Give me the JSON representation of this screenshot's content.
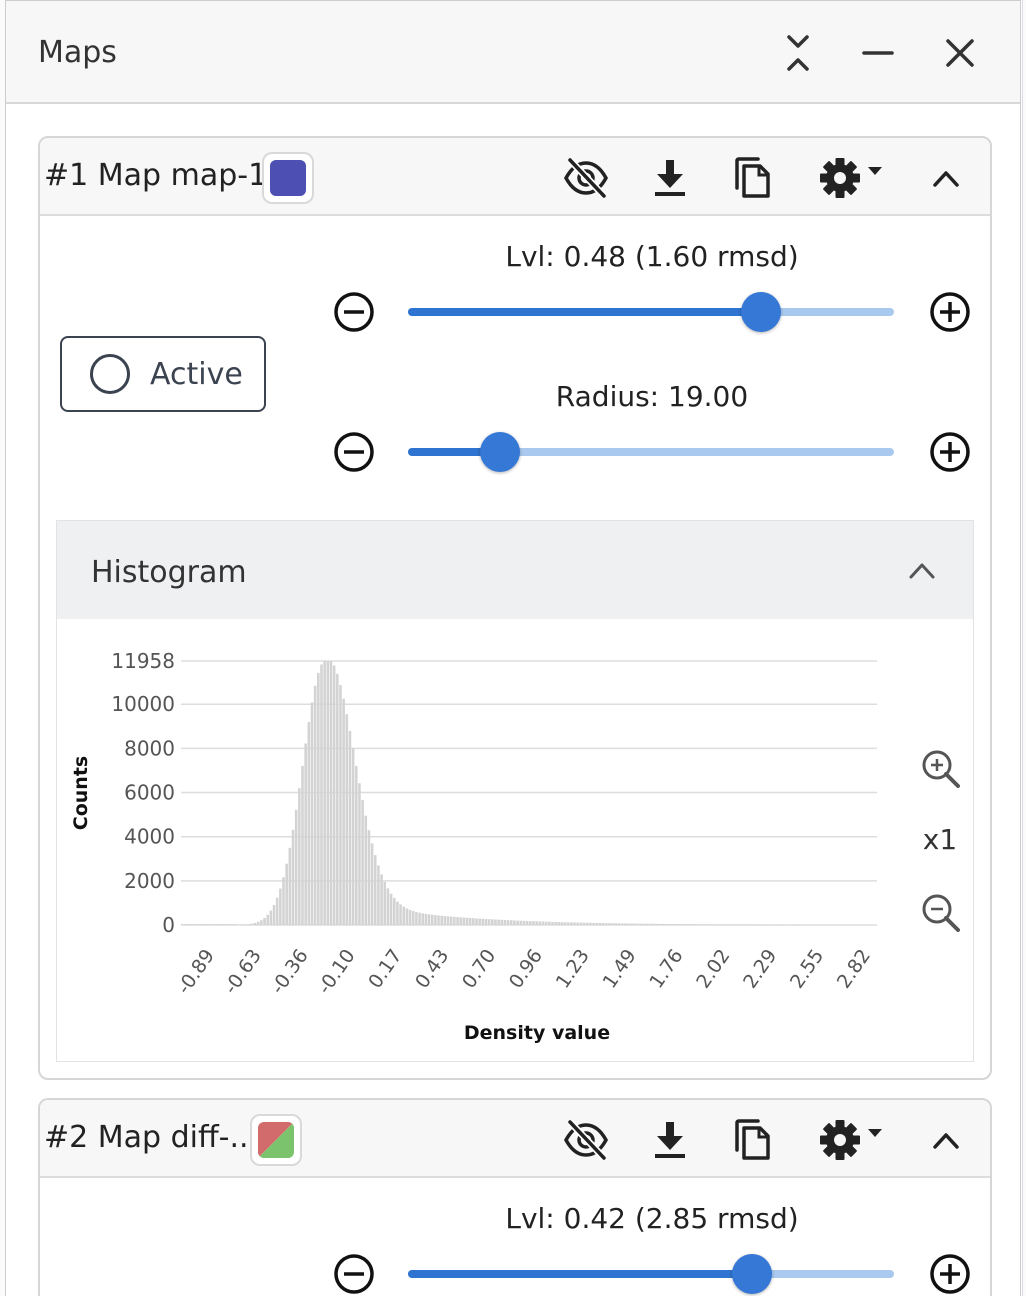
{
  "panel": {
    "title": "Maps"
  },
  "maps": [
    {
      "title": "#1 Map map-1",
      "swatch_color": "#4d4fb2",
      "level": {
        "label": "Lvl: 0.48 (1.60 rmsd)",
        "fraction": 0.727
      },
      "radius": {
        "label": "Radius: 19.00",
        "fraction": 0.19
      },
      "active_label": "Active",
      "histogram": {
        "title": "Histogram",
        "zoom_label": "x1"
      }
    },
    {
      "title": "#2 Map diff-...",
      "swatch_colors": [
        "#d26b6b",
        "#7cc36e"
      ],
      "level": {
        "label": "Lvl: 0.42 (2.85 rmsd)",
        "fraction": 0.708
      }
    }
  ],
  "chart_data": {
    "type": "bar",
    "xlabel": "Density value",
    "ylabel": "Counts",
    "y_ticks": [
      "0",
      "2000",
      "4000",
      "6000",
      "8000",
      "10000",
      "11958"
    ],
    "x_ticks": [
      "-0.89",
      "-0.63",
      "-0.36",
      "-0.10",
      "0.17",
      "0.43",
      "0.70",
      "0.96",
      "1.23",
      "1.49",
      "1.76",
      "2.02",
      "2.29",
      "2.55",
      "2.82"
    ],
    "xlim": [
      -0.89,
      2.82
    ],
    "ylim": [
      0,
      11958
    ],
    "grid": true,
    "peak_x": -0.12,
    "peak_y": 11958,
    "left_sigma": 0.12,
    "right_sigma": 0.15,
    "tail_amplitude": 1300,
    "tail_decay": 0.55,
    "bar_color": "#d3d3d3"
  }
}
